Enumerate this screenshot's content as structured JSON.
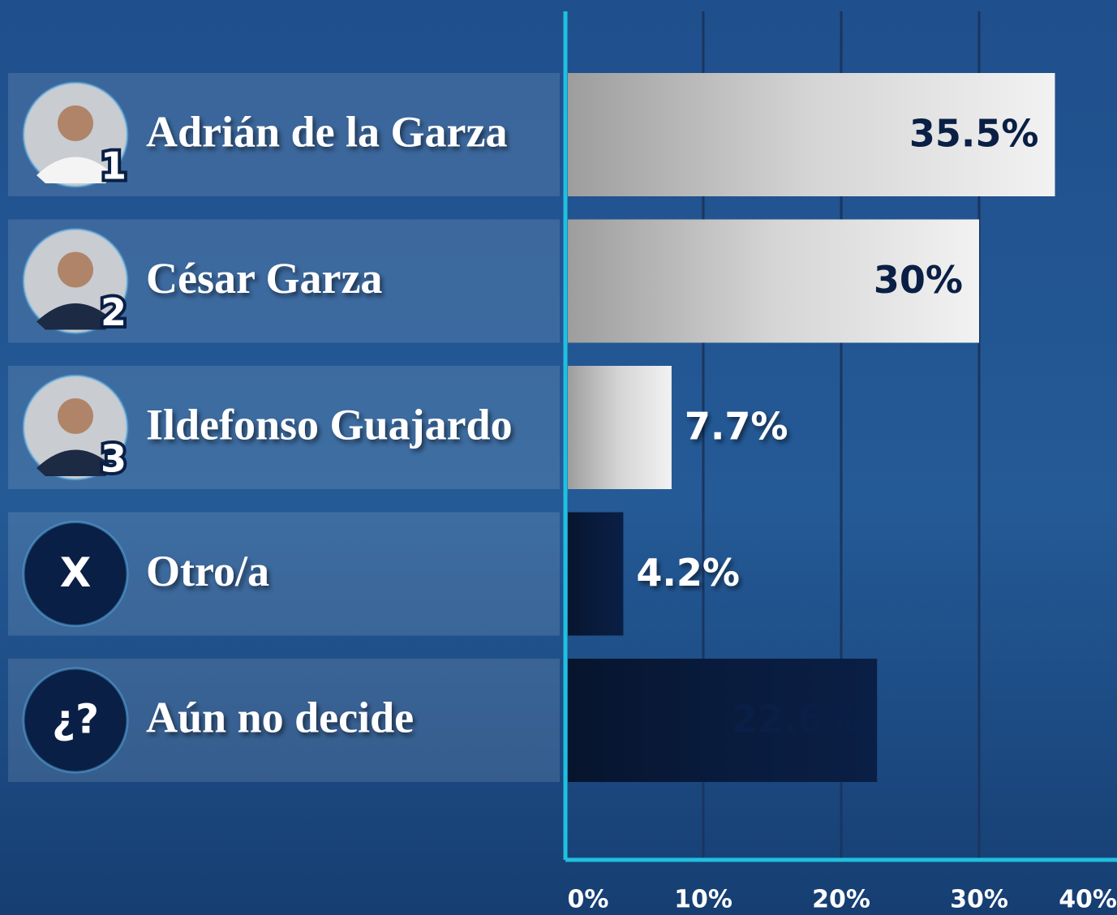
{
  "chart_data": {
    "type": "bar",
    "orientation": "horizontal",
    "categories": [
      "Adrián de la Garza",
      "César Garza",
      "Ildefonso Guajardo",
      "Otro/a",
      "Aún no decide"
    ],
    "badges": [
      "1",
      "2",
      "3",
      "X",
      "¿?"
    ],
    "values": [
      35.5,
      30,
      7.7,
      4.2,
      22.6
    ],
    "value_labels": [
      "35.5%",
      "30%",
      "7.7%",
      "4.2%",
      "22.6%"
    ],
    "colors": [
      "#f2f2f2",
      "#f2f2f2",
      "#f2f2f2",
      "#0a1f45",
      "#0a1f45"
    ],
    "xlim": [
      0,
      40
    ],
    "xticks": [
      {
        "value": 0,
        "label": "0%"
      },
      {
        "value": 10,
        "label": "10%"
      },
      {
        "value": 20,
        "label": "20%"
      },
      {
        "value": 30,
        "label": "30%"
      },
      {
        "value": 40,
        "label": "40%"
      }
    ],
    "grid": true
  }
}
